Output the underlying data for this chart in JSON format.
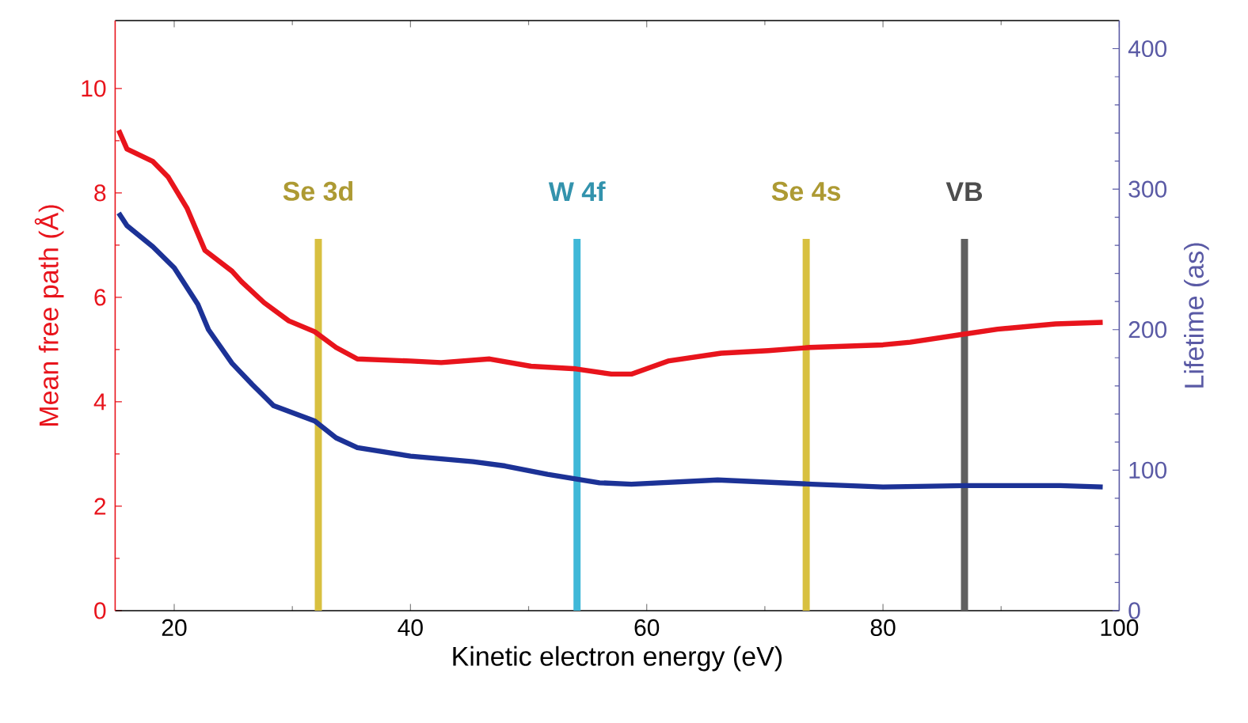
{
  "chart_data": {
    "type": "line",
    "xlabel": "Kinetic electron energy (eV)",
    "ylabel": "Mean free path (Å)",
    "y2label": "Lifetime (as)",
    "xlim": [
      15,
      100
    ],
    "xticks": [
      20,
      40,
      60,
      80,
      100
    ],
    "ylim": [
      0,
      11.3
    ],
    "yticks": [
      0,
      2,
      4,
      6,
      8,
      10
    ],
    "y2lim": [
      0,
      420
    ],
    "y2ticks": [
      0,
      100,
      200,
      300,
      400
    ],
    "series": [
      {
        "color": "#e8141c",
        "x": [
          15.3,
          16,
          18.2,
          19.5,
          21.1,
          22.6,
          24.9,
          25.7,
          27.6,
          29.7,
          31.9,
          33.7,
          35.5,
          40,
          42.6,
          46.7,
          50.2,
          54,
          57,
          58.7,
          61.8,
          66.3,
          70.3,
          73.8,
          80,
          82.3,
          86.7,
          89.7,
          94.6,
          98.6
        ],
        "values": [
          9.2,
          8.84,
          8.6,
          8.3,
          7.7,
          6.9,
          6.5,
          6.3,
          5.9,
          5.55,
          5.34,
          5.04,
          4.82,
          4.78,
          4.75,
          4.82,
          4.68,
          4.63,
          4.53,
          4.53,
          4.78,
          4.93,
          4.98,
          5.04,
          5.09,
          5.14,
          5.29,
          5.39,
          5.49,
          5.52
        ]
      },
      {
        "color": "#1c3296",
        "axis": "y2",
        "x": [
          15.3,
          16,
          18.2,
          20,
          22,
          22.9,
          24.9,
          26.6,
          28.4,
          31.9,
          33.7,
          35.5,
          40,
          45.3,
          48,
          51.6,
          56,
          58.7,
          66,
          74,
          80,
          87,
          95,
          98.6
        ],
        "values": [
          283,
          274,
          259,
          244,
          218,
          200,
          176,
          161,
          146,
          135,
          123,
          116,
          110,
          106,
          103,
          97,
          91,
          90,
          93,
          90,
          88,
          89,
          89,
          88
        ]
      }
    ],
    "ref_lines": [
      {
        "axis": "x",
        "value": 32.2,
        "label": "Se 3d",
        "color": "#d8c040"
      },
      {
        "axis": "x",
        "value": 54.1,
        "label": "W 4f",
        "color": "#40b8d8"
      },
      {
        "axis": "x",
        "value": 73.5,
        "label": "Se 4s",
        "color": "#d8c040"
      },
      {
        "axis": "x",
        "value": 86.9,
        "label": "VB",
        "color": "#606060"
      }
    ]
  }
}
